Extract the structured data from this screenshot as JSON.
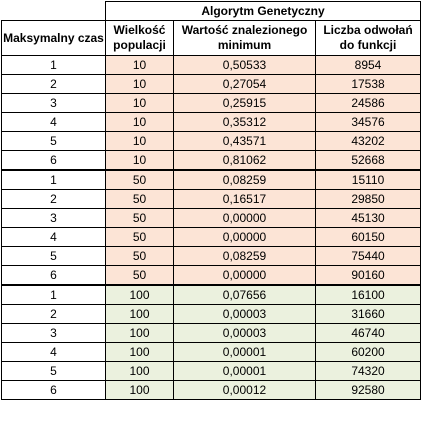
{
  "table": {
    "group_header": "Algorytm Genetyczny",
    "headers": [
      "Maksymalny czas",
      "Wielkość populacji",
      "Wartość znalezionego minimum",
      "Liczba odwołań do funkcji"
    ],
    "rows": [
      [
        "1",
        "10",
        "0,50533",
        "8954"
      ],
      [
        "2",
        "10",
        "0,27054",
        "17538"
      ],
      [
        "3",
        "10",
        "0,25915",
        "24586"
      ],
      [
        "4",
        "10",
        "0,35312",
        "34576"
      ],
      [
        "5",
        "10",
        "0,43571",
        "43202"
      ],
      [
        "6",
        "10",
        "0,81062",
        "52668"
      ],
      [
        "1",
        "50",
        "0,08259",
        "15110"
      ],
      [
        "2",
        "50",
        "0,16517",
        "29850"
      ],
      [
        "3",
        "50",
        "0,00000",
        "45130"
      ],
      [
        "4",
        "50",
        "0,00000",
        "60150"
      ],
      [
        "5",
        "50",
        "0,08259",
        "75440"
      ],
      [
        "6",
        "50",
        "0,00000",
        "90160"
      ],
      [
        "1",
        "100",
        "0,07656",
        "16100"
      ],
      [
        "2",
        "100",
        "0,00003",
        "31660"
      ],
      [
        "3",
        "100",
        "0,00003",
        "46740"
      ],
      [
        "4",
        "100",
        "0,00001",
        "60200"
      ],
      [
        "5",
        "100",
        "0,00001",
        "74320"
      ],
      [
        "6",
        "100",
        "0,00012",
        "92580"
      ]
    ]
  },
  "colors": {
    "fill_pop_10_50": "#fce4d6",
    "fill_pop_100": "#ebf1de",
    "border": "#000000"
  }
}
